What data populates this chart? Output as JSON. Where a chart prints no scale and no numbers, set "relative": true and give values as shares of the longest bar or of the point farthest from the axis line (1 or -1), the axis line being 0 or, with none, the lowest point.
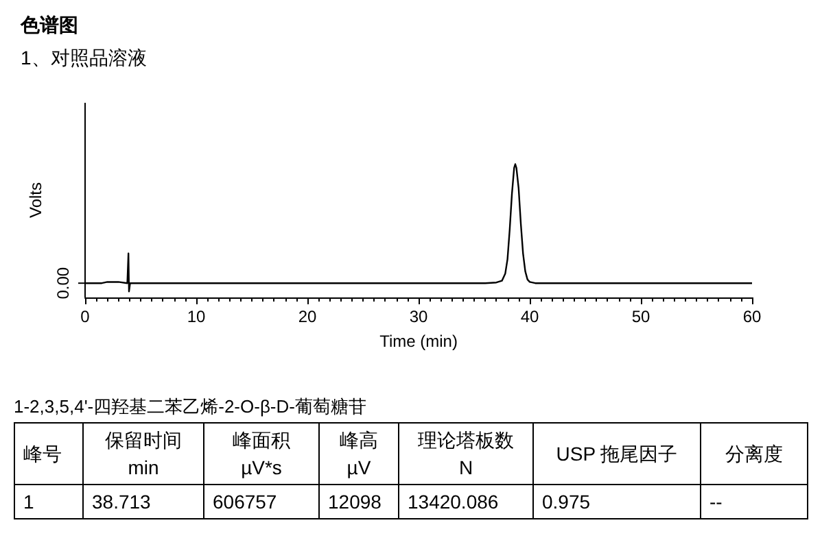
{
  "chart_data": {
    "type": "line",
    "title": "色谱图",
    "subtitle": "1、对照品溶液",
    "xlabel": "Time (min)",
    "ylabel": "Volts",
    "relative": true,
    "x": [
      0,
      1.5,
      2,
      3,
      3.8,
      3.9,
      3.95,
      4.05,
      10,
      20,
      30,
      36,
      37,
      37.5,
      37.8,
      38.0,
      38.2,
      38.4,
      38.6,
      38.7,
      38.8,
      39.0,
      39.2,
      39.4,
      39.6,
      39.8,
      40.0,
      40.5,
      50,
      60
    ],
    "series": [
      {
        "color": "#000000",
        "values": [
          0.107,
          0.107,
          0.116,
          0.116,
          0.107,
          0.33,
          0.045,
          0.107,
          0.107,
          0.107,
          0.107,
          0.107,
          0.112,
          0.125,
          0.179,
          0.286,
          0.509,
          0.777,
          0.973,
          1,
          0.973,
          0.821,
          0.554,
          0.33,
          0.196,
          0.134,
          0.116,
          0.107,
          0.107,
          0.107
        ]
      }
    ],
    "xlim": [
      0,
      60
    ],
    "xticks": [
      0,
      10,
      20,
      30,
      40,
      50,
      60
    ],
    "grid": false,
    "marker": "none",
    "line_style": "solid",
    "annotations": [
      "0.00",
      "1-2,3,5,4'-四羟基二苯乙烯-2-O-β-D-葡萄糖苷",
      "峰号",
      "保留时间\nmin",
      "峰面积\nµV*s",
      "峰高\nµV",
      "理论塔板数\nN",
      "USP 拖尾因子",
      "分离度",
      "1",
      "38.713",
      "606757",
      "12098",
      "13420.086",
      "0.975",
      "--"
    ]
  }
}
